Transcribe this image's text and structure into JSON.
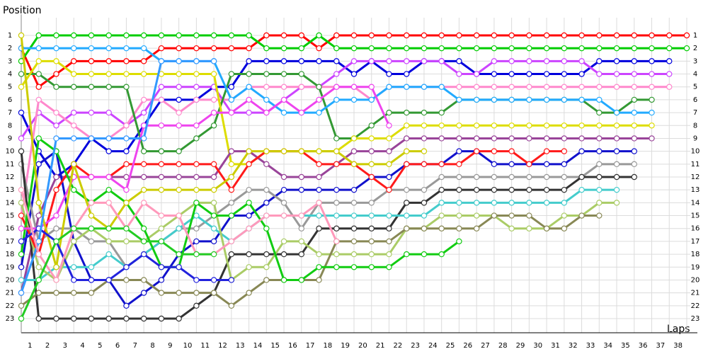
{
  "chart_data": {
    "type": "lapchart",
    "y_label": "Position",
    "x_label": "Laps",
    "x": [
      0,
      1,
      2,
      3,
      4,
      5,
      6,
      7,
      8,
      9,
      10,
      11,
      12,
      13,
      14,
      15,
      16,
      17,
      18,
      19,
      20,
      21,
      22,
      23,
      24,
      25,
      26,
      27,
      28,
      29,
      30,
      31,
      32,
      33,
      34,
      35,
      36,
      37,
      38
    ],
    "xlim": [
      0,
      38
    ],
    "ylim": [
      23,
      1
    ],
    "xticks": [
      1,
      2,
      3,
      4,
      5,
      6,
      7,
      8,
      9,
      10,
      11,
      12,
      13,
      14,
      15,
      16,
      17,
      18,
      19,
      20,
      21,
      22,
      23,
      24,
      25,
      26,
      27,
      28,
      29,
      30,
      31,
      32,
      33,
      34,
      35,
      36,
      37,
      38
    ],
    "yticks": [
      1,
      2,
      3,
      4,
      5,
      6,
      7,
      8,
      9,
      10,
      11,
      12,
      13,
      14,
      15,
      16,
      17,
      18,
      19,
      20,
      21,
      22,
      23
    ],
    "grid": true,
    "series": [
      {
        "color": "#ff0000",
        "values": [
          2,
          5,
          4,
          3,
          3,
          3,
          3,
          3,
          2,
          2,
          2,
          2,
          2,
          2,
          1,
          1,
          1,
          2,
          1,
          1,
          1,
          1,
          1,
          1,
          1,
          1,
          1,
          1,
          1,
          1,
          1,
          1,
          1,
          1,
          1,
          1,
          1,
          1,
          1
        ]
      },
      {
        "color": "#00cc00",
        "values": [
          3,
          1,
          1,
          1,
          1,
          1,
          1,
          1,
          1,
          1,
          1,
          1,
          1,
          1,
          2,
          2,
          2,
          1,
          2,
          2,
          2,
          2,
          2,
          2,
          2,
          2,
          2,
          2,
          2,
          2,
          2,
          2,
          2,
          2,
          2,
          2,
          2,
          2,
          2
        ]
      },
      {
        "color": "#0000dd",
        "values": [
          7,
          10,
          12,
          11,
          9,
          10,
          10,
          8,
          6,
          6,
          6,
          5,
          5,
          3,
          3,
          3,
          3,
          3,
          3,
          4,
          3,
          4,
          4,
          3,
          3,
          3,
          4,
          4,
          4,
          4,
          4,
          4,
          4,
          3,
          3,
          3,
          3,
          3,
          null
        ]
      },
      {
        "color": "#cc44ff",
        "values": [
          9,
          7,
          8,
          7,
          7,
          7,
          8,
          7,
          5,
          5,
          5,
          5,
          7,
          7,
          7,
          6,
          5,
          5,
          4,
          3,
          3,
          3,
          3,
          3,
          3,
          4,
          4,
          3,
          3,
          3,
          3,
          3,
          3,
          4,
          4,
          4,
          4,
          4,
          null
        ]
      },
      {
        "color": "#ff88cc",
        "values": [
          15,
          6,
          7,
          8,
          9,
          9,
          8,
          6,
          6,
          7,
          6,
          6,
          6,
          5,
          5,
          5,
          5,
          5,
          5,
          5,
          6,
          5,
          5,
          5,
          5,
          5,
          5,
          5,
          5,
          5,
          5,
          5,
          5,
          5,
          5,
          5,
          5,
          5,
          null
        ]
      },
      {
        "color": "#339933",
        "values": [
          4,
          4,
          5,
          5,
          5,
          5,
          5,
          10,
          10,
          10,
          9,
          8,
          4,
          4,
          4,
          4,
          4,
          5,
          9,
          9,
          8,
          7,
          7,
          7,
          7,
          6,
          6,
          6,
          6,
          6,
          6,
          6,
          6,
          7,
          7,
          6,
          6,
          null,
          null
        ]
      },
      {
        "color": "#22aaff",
        "values": [
          2,
          2,
          2,
          2,
          2,
          2,
          2,
          2,
          3,
          3,
          3,
          3,
          6,
          5,
          6,
          7,
          7,
          7,
          6,
          6,
          6,
          5,
          5,
          5,
          5,
          6,
          6,
          6,
          6,
          6,
          6,
          6,
          6,
          6,
          7,
          7,
          7,
          null,
          null
        ]
      },
      {
        "color": "#dddd00",
        "values": [
          5,
          3,
          3,
          4,
          4,
          4,
          4,
          4,
          4,
          4,
          4,
          4,
          11,
          11,
          10,
          10,
          10,
          10,
          10,
          9,
          9,
          9,
          8,
          8,
          8,
          8,
          8,
          8,
          8,
          8,
          8,
          8,
          8,
          8,
          8,
          8,
          8,
          null,
          null
        ]
      },
      {
        "color": "#994499",
        "values": [
          21,
          15,
          12,
          12,
          12,
          12,
          12,
          12,
          12,
          12,
          12,
          12,
          10,
          10,
          11,
          12,
          12,
          12,
          11,
          10,
          10,
          10,
          9,
          9,
          9,
          9,
          9,
          9,
          9,
          9,
          9,
          9,
          9,
          9,
          9,
          9,
          9,
          null,
          null
        ]
      },
      {
        "color": "#1111cc",
        "values": [
          19,
          11,
          10,
          17,
          20,
          20,
          22,
          21,
          20,
          18,
          17,
          17,
          15,
          15,
          14,
          13,
          13,
          13,
          13,
          13,
          12,
          12,
          11,
          11,
          11,
          10,
          10,
          11,
          11,
          11,
          11,
          11,
          10,
          10,
          10,
          10,
          null,
          null,
          null
        ]
      },
      {
        "color": "#999999",
        "values": [
          11,
          17,
          16,
          16,
          17,
          17,
          19,
          18,
          17,
          16,
          16,
          15,
          14,
          13,
          13,
          14,
          16,
          14,
          14,
          14,
          14,
          13,
          13,
          13,
          12,
          12,
          12,
          12,
          12,
          12,
          12,
          12,
          12,
          11,
          11,
          11,
          null,
          null,
          null
        ]
      },
      {
        "color": "#333333",
        "values": [
          10,
          23,
          23,
          23,
          23,
          23,
          23,
          23,
          23,
          23,
          22,
          21,
          18,
          18,
          18,
          18,
          18,
          16,
          16,
          16,
          16,
          16,
          14,
          14,
          13,
          13,
          13,
          13,
          13,
          13,
          13,
          13,
          12,
          12,
          12,
          12,
          null,
          null,
          null
        ]
      },
      {
        "color": "#44cccc",
        "values": [
          20,
          20,
          19,
          19,
          19,
          18,
          19,
          18,
          17,
          16,
          15,
          16,
          17,
          16,
          15,
          15,
          15,
          15,
          15,
          15,
          15,
          15,
          15,
          15,
          14,
          14,
          14,
          14,
          14,
          14,
          14,
          14,
          13,
          13,
          13,
          null,
          null,
          null,
          null
        ]
      },
      {
        "color": "#aacc66",
        "values": [
          14,
          19,
          20,
          17,
          16,
          17,
          17,
          17,
          16,
          15,
          14,
          14,
          20,
          19,
          19,
          17,
          17,
          18,
          18,
          18,
          18,
          18,
          16,
          16,
          15,
          15,
          15,
          15,
          16,
          16,
          16,
          15,
          15,
          14,
          14,
          null,
          null,
          null,
          null
        ]
      },
      {
        "color": "#888855",
        "values": [
          22,
          21,
          21,
          21,
          21,
          20,
          20,
          20,
          21,
          21,
          21,
          21,
          22,
          21,
          20,
          20,
          20,
          20,
          17,
          17,
          17,
          17,
          16,
          16,
          16,
          16,
          16,
          15,
          15,
          15,
          16,
          16,
          15,
          15,
          null,
          null,
          null,
          null,
          null
        ]
      },
      {
        "color": "#ff1a1a",
        "values": [
          15,
          18,
          13,
          11,
          12,
          12,
          11,
          11,
          11,
          11,
          11,
          11,
          13,
          11,
          10,
          10,
          10,
          11,
          11,
          11,
          12,
          13,
          11,
          11,
          11,
          11,
          10,
          10,
          10,
          11,
          10,
          10,
          null,
          null,
          null,
          null,
          null,
          null,
          null
        ]
      },
      {
        "color": "#11cc11",
        "values": [
          18,
          9,
          10,
          13,
          14,
          13,
          14,
          16,
          19,
          19,
          14,
          15,
          15,
          14,
          16,
          20,
          20,
          19,
          19,
          19,
          19,
          19,
          18,
          18,
          18,
          17,
          null,
          null,
          null,
          null,
          null,
          null,
          null,
          null,
          null,
          null,
          null,
          null,
          null
        ]
      },
      {
        "color": "#ee44ee",
        "values": [
          16,
          16,
          15,
          12,
          12,
          12,
          13,
          8,
          8,
          8,
          8,
          7,
          7,
          6,
          7,
          6,
          7,
          6,
          5,
          5,
          5,
          8,
          null,
          null,
          null,
          null,
          null,
          null,
          null,
          null,
          null,
          null,
          null,
          null,
          null,
          null,
          null,
          null,
          null
        ]
      },
      {
        "color": "#cccc00",
        "values": [
          1,
          14,
          19,
          11,
          15,
          16,
          14,
          13,
          13,
          13,
          13,
          13,
          12,
          10,
          10,
          10,
          10,
          10,
          10,
          11,
          11,
          11,
          10,
          10,
          null,
          null,
          null,
          null,
          null,
          null,
          null,
          null,
          null,
          null,
          null,
          null,
          null,
          null,
          null
        ]
      },
      {
        "color": "#2222dd",
        "values": [
          17,
          16,
          17,
          20,
          20,
          20,
          19,
          18,
          19,
          19,
          20,
          20,
          20,
          null,
          null,
          null,
          null,
          null,
          null,
          null,
          null,
          null,
          null,
          null,
          null,
          null,
          null,
          null,
          null,
          null,
          null,
          null,
          null,
          null,
          null,
          null,
          null,
          null,
          null
        ]
      },
      {
        "color": "#3399ff",
        "values": [
          21,
          17,
          9,
          9,
          9,
          9,
          9,
          9,
          3,
          3,
          3,
          3,
          null,
          null,
          null,
          null,
          null,
          null,
          null,
          null,
          null,
          null,
          null,
          null,
          null,
          null,
          null,
          null,
          null,
          null,
          null,
          null,
          null,
          null,
          null,
          null,
          null,
          null,
          null
        ]
      },
      {
        "color": "#ff99bb",
        "values": [
          13,
          18,
          20,
          16,
          14,
          14,
          16,
          14,
          15,
          15,
          18,
          18,
          17,
          16,
          15,
          15,
          15,
          14,
          17,
          null,
          null,
          null,
          null,
          null,
          null,
          null,
          null,
          null,
          null,
          null,
          null,
          null,
          null,
          null,
          null,
          null,
          null,
          null,
          null
        ]
      },
      {
        "color": "#22cc22",
        "values": [
          23,
          20,
          17,
          16,
          16,
          16,
          16,
          17,
          17,
          18,
          18,
          18,
          null,
          null,
          null,
          null,
          null,
          null,
          null,
          null,
          null,
          null,
          null,
          null,
          null,
          null,
          null,
          null,
          null,
          null,
          null,
          null,
          null,
          null,
          null,
          null,
          null,
          null,
          null
        ]
      }
    ]
  }
}
